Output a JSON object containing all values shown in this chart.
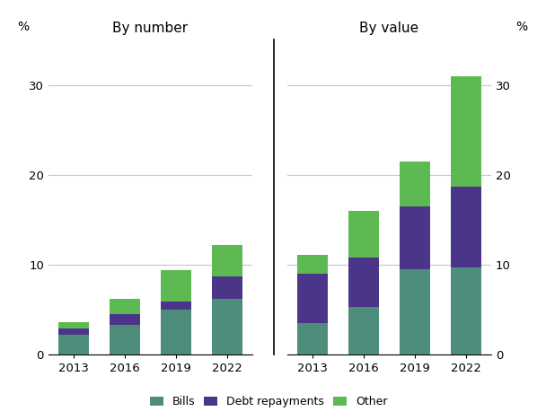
{
  "left_panel_title": "By number",
  "right_panel_title": "By value",
  "years": [
    "2013",
    "2016",
    "2019",
    "2022"
  ],
  "by_number": {
    "Bills": [
      2.2,
      3.3,
      5.0,
      6.2
    ],
    "Debt repayments": [
      0.7,
      1.2,
      0.9,
      2.5
    ],
    "Other": [
      0.7,
      1.7,
      3.5,
      3.5
    ]
  },
  "by_value": {
    "Bills": [
      3.5,
      5.3,
      9.5,
      9.7
    ],
    "Debt repayments": [
      5.5,
      5.5,
      7.0,
      9.0
    ],
    "Other": [
      2.1,
      5.2,
      5.0,
      12.3
    ]
  },
  "color_bills": "#4e8c7c",
  "color_debt_repayments": "#4b3589",
  "color_other": "#5dba52",
  "ylim": [
    0,
    35
  ],
  "yticks": [
    0,
    10,
    20,
    30
  ],
  "bar_width": 0.6,
  "background_color": "#ffffff",
  "ylabel_left": "%",
  "ylabel_right": "%",
  "divider_line_color": "#000000",
  "grid_color": "#c8c8c8"
}
